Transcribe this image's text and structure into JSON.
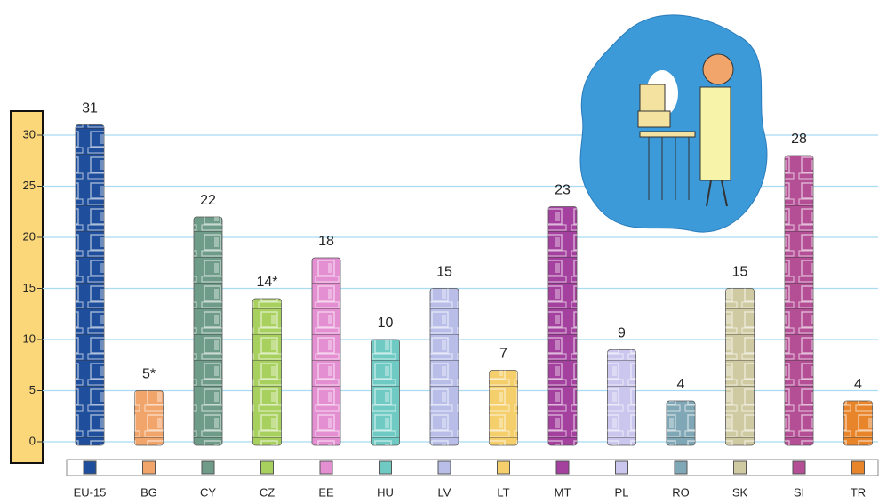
{
  "chart_data": {
    "type": "bar",
    "categories": [
      "EU-15",
      "BG",
      "CY",
      "CZ",
      "EE",
      "HU",
      "LV",
      "LT",
      "MT",
      "PL",
      "RO",
      "SK",
      "SI",
      "TR"
    ],
    "values": [
      31,
      5,
      22,
      14,
      18,
      10,
      15,
      7,
      23,
      9,
      4,
      15,
      28,
      4
    ],
    "value_labels": [
      "31",
      "5*",
      "22",
      "14*",
      "18",
      "10",
      "15",
      "7",
      "23",
      "9",
      "4",
      "15",
      "28",
      "4"
    ],
    "colors": [
      "#1f4f9c",
      "#f2a56b",
      "#6f9c88",
      "#a8d05e",
      "#e48fd2",
      "#6fcac4",
      "#b9bee9",
      "#f4cf6b",
      "#a4409e",
      "#cbc6ee",
      "#80a7b6",
      "#d0caa2",
      "#b44f96",
      "#e8852b"
    ],
    "ylim": [
      0,
      30
    ],
    "yticks": [
      0,
      5,
      10,
      15,
      20,
      25,
      30
    ],
    "grid": true
  }
}
